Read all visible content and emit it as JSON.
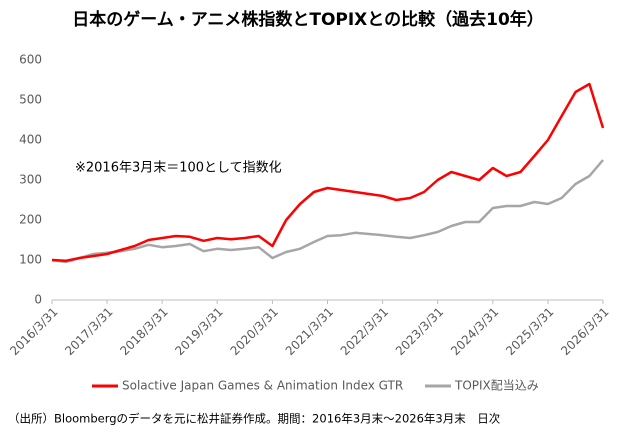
{
  "chart_data": {
    "type": "line",
    "title": "日本のゲーム・アニメ株指数とTOPIXとの比較（過去10年）",
    "annotation": "※2016年3月末＝100として指数化",
    "footnote": "（出所）Bloombergのデータを元に松井証券作成。期間：2016年3月末～2026年3月末　日次",
    "x": [
      "2016/3/31",
      "2016/6/30",
      "2016/9/30",
      "2016/12/31",
      "2017/3/31",
      "2017/6/30",
      "2017/9/30",
      "2017/12/31",
      "2018/3/31",
      "2018/6/30",
      "2018/9/30",
      "2018/12/31",
      "2019/3/31",
      "2019/6/30",
      "2019/9/30",
      "2019/12/31",
      "2020/3/31",
      "2020/6/30",
      "2020/9/30",
      "2020/12/31",
      "2021/3/31",
      "2021/6/30",
      "2021/9/30",
      "2021/12/31",
      "2022/3/31",
      "2022/6/30",
      "2022/9/30",
      "2022/12/31",
      "2023/3/31",
      "2023/6/30",
      "2023/9/30",
      "2023/12/31",
      "2024/3/31",
      "2024/6/30",
      "2024/9/30",
      "2024/12/31",
      "2025/3/31",
      "2025/6/30",
      "2025/9/30",
      "2025/12/31",
      "2026/3/31"
    ],
    "series": [
      {
        "name": "Solactive Japan Games & Animation Index GTR",
        "color": "#ff0000",
        "values": [
          100,
          98,
          105,
          110,
          115,
          125,
          135,
          150,
          155,
          160,
          158,
          148,
          155,
          152,
          155,
          160,
          135,
          200,
          240,
          270,
          280,
          275,
          270,
          265,
          260,
          250,
          255,
          270,
          300,
          320,
          310,
          300,
          330,
          310,
          320,
          360,
          400,
          460,
          520,
          540,
          430
        ]
      },
      {
        "name": "TOPIX配当込み",
        "color": "#a6a6a6",
        "values": [
          100,
          95,
          105,
          115,
          118,
          122,
          128,
          138,
          132,
          135,
          140,
          122,
          128,
          125,
          128,
          132,
          105,
          120,
          128,
          145,
          160,
          162,
          168,
          165,
          162,
          158,
          155,
          162,
          170,
          185,
          195,
          195,
          230,
          235,
          235,
          245,
          240,
          255,
          290,
          310,
          350
        ]
      }
    ],
    "xticks": [
      "2016/3/31",
      "2017/3/31",
      "2018/3/31",
      "2019/3/31",
      "2020/3/31",
      "2021/3/31",
      "2022/3/31",
      "2023/3/31",
      "2024/3/31",
      "2025/3/31",
      "2026/3/31"
    ],
    "ylim": [
      0,
      600
    ],
    "yticks": [
      0,
      100,
      200,
      300,
      400,
      500,
      600
    ],
    "grid": false
  }
}
